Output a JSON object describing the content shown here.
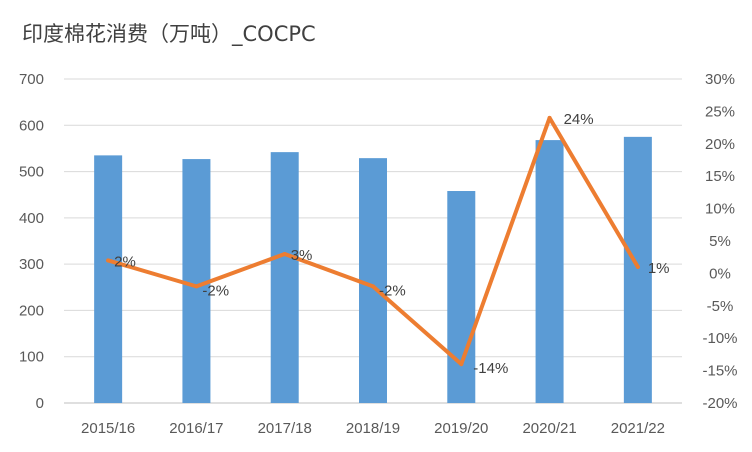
{
  "chart_data": {
    "type": "bar",
    "title": "印度棉花消费（万吨）_COCPC",
    "categories": [
      "2015/16",
      "2016/17",
      "2017/18",
      "2018/19",
      "2019/20",
      "2020/21",
      "2021/22"
    ],
    "series": [
      {
        "type": "bar",
        "axis": "left",
        "color": "#5B9BD5",
        "values": [
          535,
          527,
          542,
          529,
          458,
          568,
          575
        ]
      },
      {
        "type": "line",
        "axis": "right",
        "color": "#ED7D31",
        "values": [
          2,
          -2,
          3,
          -2,
          -14,
          24,
          1
        ],
        "labels": [
          "2%",
          "-2%",
          "3%",
          "-2%",
          "-14%",
          "24%",
          "1%"
        ]
      }
    ],
    "y_left": {
      "ylim": [
        0,
        700
      ],
      "ticks": [
        "0",
        "100",
        "200",
        "300",
        "400",
        "500",
        "600",
        "700"
      ]
    },
    "y_right": {
      "ylim": [
        -20,
        30
      ],
      "ticks": [
        "-20%",
        "-15%",
        "-10%",
        "-5%",
        "0%",
        "5%",
        "10%",
        "15%",
        "20%",
        "25%",
        "30%"
      ]
    },
    "grid": true,
    "legend": "none"
  }
}
